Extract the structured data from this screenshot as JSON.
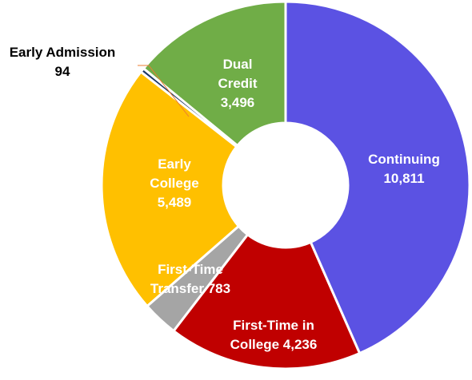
{
  "chart_data": {
    "type": "donut",
    "categories": [
      "Continuing",
      "First-Time in College",
      "First-Time Transfer",
      "Early College",
      "Early Admission",
      "Dual Credit"
    ],
    "values": [
      10811,
      4236,
      783,
      5489,
      94,
      3496
    ],
    "value_labels": [
      "10,811",
      "4,236",
      "783",
      "5,489",
      "94",
      "3,496"
    ],
    "colors": [
      "#5b52e3",
      "#c00000",
      "#a5a5a5",
      "#ffc000",
      "#1f3864",
      "#70ad47"
    ],
    "label_colors": [
      "#ffffff",
      "#ffffff",
      "#ffffff",
      "#ffffff",
      "#000000",
      "#ffffff"
    ]
  }
}
